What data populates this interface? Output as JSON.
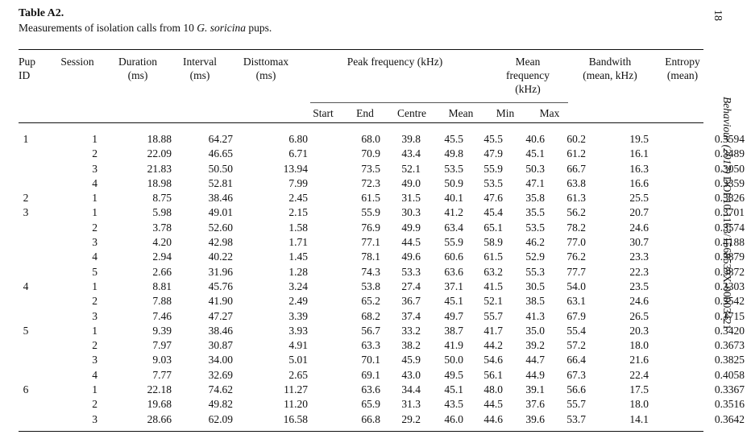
{
  "header": {
    "title": "Table A2.",
    "caption_before": "Measurements of isolation calls from 10 ",
    "caption_species": "G. soricina",
    "caption_after": " pups.",
    "page_number": "18",
    "running_head_journal": "Behaviour (2017)",
    "running_head_doi": " DOI:10.1163/1568539X-00003421"
  },
  "columns": {
    "pup": "Pup",
    "pup2": "ID",
    "session": "Session",
    "duration": "Duration",
    "duration_unit": "(ms)",
    "interval": "Interval",
    "interval_unit": "(ms)",
    "disttomax": "Disttomax",
    "disttomax_unit": "(ms)",
    "peak": "Peak frequency (kHz)",
    "mean_freq1": "Mean",
    "mean_freq2": "frequency",
    "mean_freq3": "(kHz)",
    "bandwith1": "Bandwith",
    "bandwith2": "(mean, kHz)",
    "entropy1": "Entropy",
    "entropy2": "(mean)",
    "start": "Start",
    "end": "End",
    "centre": "Centre",
    "mean": "Mean",
    "min": "Min",
    "max": "Max"
  },
  "rows": [
    [
      "1",
      "1",
      "18.88",
      "64.27",
      "6.80",
      "68.0",
      "39.8",
      "45.5",
      "45.5",
      "40.6",
      "60.2",
      "19.5",
      "0.3594"
    ],
    [
      "",
      "2",
      "22.09",
      "46.65",
      "6.71",
      "70.9",
      "43.4",
      "49.8",
      "47.9",
      "45.1",
      "61.2",
      "16.1",
      "0.3489"
    ],
    [
      "",
      "3",
      "21.83",
      "50.50",
      "13.94",
      "73.5",
      "52.1",
      "53.5",
      "55.9",
      "50.3",
      "66.7",
      "16.3",
      "0.3050"
    ],
    [
      "",
      "4",
      "18.98",
      "52.81",
      "7.99",
      "72.3",
      "49.0",
      "50.9",
      "53.5",
      "47.1",
      "63.8",
      "16.6",
      "0.3359"
    ],
    [
      "2",
      "1",
      "8.75",
      "38.46",
      "2.45",
      "61.5",
      "31.5",
      "40.1",
      "47.6",
      "35.8",
      "61.3",
      "25.5",
      "0.3826"
    ],
    [
      "3",
      "1",
      "5.98",
      "49.01",
      "2.15",
      "55.9",
      "30.3",
      "41.2",
      "45.4",
      "35.5",
      "56.2",
      "20.7",
      "0.3701"
    ],
    [
      "",
      "2",
      "3.78",
      "52.60",
      "1.58",
      "76.9",
      "49.9",
      "63.4",
      "65.1",
      "53.5",
      "78.2",
      "24.6",
      "0.3574"
    ],
    [
      "",
      "3",
      "4.20",
      "42.98",
      "1.71",
      "77.1",
      "44.5",
      "55.9",
      "58.9",
      "46.2",
      "77.0",
      "30.7",
      "0.4188"
    ],
    [
      "",
      "4",
      "2.94",
      "40.22",
      "1.45",
      "78.1",
      "49.6",
      "60.6",
      "61.5",
      "52.9",
      "76.2",
      "23.3",
      "0.3879"
    ],
    [
      "",
      "5",
      "2.66",
      "31.96",
      "1.28",
      "74.3",
      "53.3",
      "63.6",
      "63.2",
      "55.3",
      "77.7",
      "22.3",
      "0.3872"
    ],
    [
      "4",
      "1",
      "8.81",
      "45.76",
      "3.24",
      "53.8",
      "27.4",
      "37.1",
      "41.5",
      "30.5",
      "54.0",
      "23.5",
      "0.3303"
    ],
    [
      "",
      "2",
      "7.88",
      "41.90",
      "2.49",
      "65.2",
      "36.7",
      "45.1",
      "52.1",
      "38.5",
      "63.1",
      "24.6",
      "0.3542"
    ],
    [
      "",
      "3",
      "7.46",
      "47.27",
      "3.39",
      "68.2",
      "37.4",
      "49.7",
      "55.7",
      "41.3",
      "67.9",
      "26.5",
      "0.3715"
    ],
    [
      "5",
      "1",
      "9.39",
      "38.46",
      "3.93",
      "56.7",
      "33.2",
      "38.7",
      "41.7",
      "35.0",
      "55.4",
      "20.3",
      "0.3420"
    ],
    [
      "",
      "2",
      "7.97",
      "30.87",
      "4.91",
      "63.3",
      "38.2",
      "41.9",
      "44.2",
      "39.2",
      "57.2",
      "18.0",
      "0.3673"
    ],
    [
      "",
      "3",
      "9.03",
      "34.00",
      "5.01",
      "70.1",
      "45.9",
      "50.0",
      "54.6",
      "44.7",
      "66.4",
      "21.6",
      "0.3825"
    ],
    [
      "",
      "4",
      "7.77",
      "32.69",
      "2.65",
      "69.1",
      "43.0",
      "49.5",
      "56.1",
      "44.9",
      "67.3",
      "22.4",
      "0.4058"
    ],
    [
      "6",
      "1",
      "22.18",
      "74.62",
      "11.27",
      "63.6",
      "34.4",
      "45.1",
      "48.0",
      "39.1",
      "56.6",
      "17.5",
      "0.3367"
    ],
    [
      "",
      "2",
      "19.68",
      "49.82",
      "11.20",
      "65.9",
      "31.3",
      "43.5",
      "44.5",
      "37.6",
      "55.7",
      "18.0",
      "0.3516"
    ],
    [
      "",
      "3",
      "28.66",
      "62.09",
      "16.58",
      "66.8",
      "29.2",
      "46.0",
      "44.6",
      "39.6",
      "53.7",
      "14.1",
      "0.3642"
    ]
  ]
}
